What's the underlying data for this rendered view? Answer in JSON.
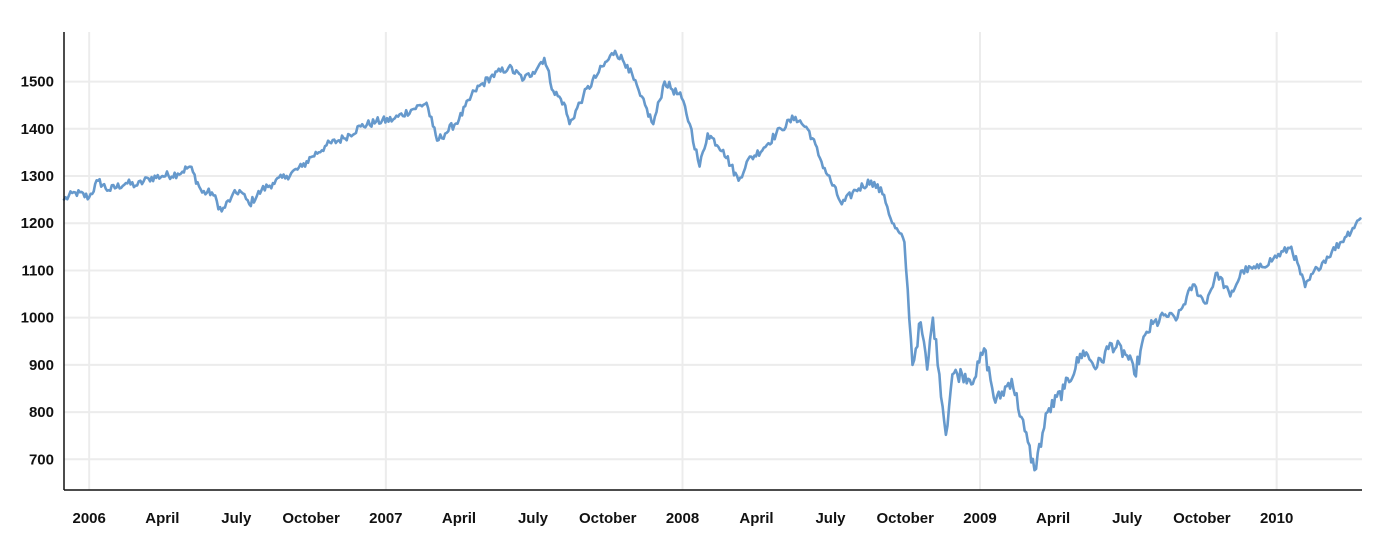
{
  "chart_data": {
    "type": "line",
    "title": "",
    "xlabel": "",
    "ylabel": "",
    "x_range": [
      "2005-12-01",
      "2010-04-16"
    ],
    "ylim": [
      635,
      1605
    ],
    "grid": {
      "horizontal": true,
      "vertical": true
    },
    "legend": "none",
    "colors": {
      "line": "#6699cc",
      "grid": "#ececec",
      "axis": "#111111",
      "text": "#111111"
    },
    "y_ticks": [
      700,
      800,
      900,
      1000,
      1100,
      1200,
      1300,
      1400,
      1500
    ],
    "x_ticks": [
      {
        "date": "2006-01-01",
        "label": "2006"
      },
      {
        "date": "2006-04-01",
        "label": "April"
      },
      {
        "date": "2006-07-01",
        "label": "July"
      },
      {
        "date": "2006-10-01",
        "label": "October"
      },
      {
        "date": "2007-01-01",
        "label": "2007"
      },
      {
        "date": "2007-04-01",
        "label": "April"
      },
      {
        "date": "2007-07-01",
        "label": "July"
      },
      {
        "date": "2007-10-01",
        "label": "October"
      },
      {
        "date": "2008-01-01",
        "label": "2008"
      },
      {
        "date": "2008-04-01",
        "label": "April"
      },
      {
        "date": "2008-07-01",
        "label": "July"
      },
      {
        "date": "2008-10-01",
        "label": "October"
      },
      {
        "date": "2009-01-01",
        "label": "2009"
      },
      {
        "date": "2009-04-01",
        "label": "April"
      },
      {
        "date": "2009-07-01",
        "label": "July"
      },
      {
        "date": "2009-10-01",
        "label": "October"
      },
      {
        "date": "2010-01-01",
        "label": "2010"
      }
    ],
    "series": [
      {
        "points": [
          [
            "2005-12-01",
            1250
          ],
          [
            "2005-12-15",
            1265
          ],
          [
            "2006-01-01",
            1255
          ],
          [
            "2006-01-12",
            1290
          ],
          [
            "2006-01-25",
            1270
          ],
          [
            "2006-02-15",
            1285
          ],
          [
            "2006-03-01",
            1280
          ],
          [
            "2006-03-15",
            1295
          ],
          [
            "2006-04-01",
            1300
          ],
          [
            "2006-04-20",
            1305
          ],
          [
            "2006-05-05",
            1320
          ],
          [
            "2006-05-20",
            1265
          ],
          [
            "2006-06-01",
            1265
          ],
          [
            "2006-06-13",
            1225
          ],
          [
            "2006-06-25",
            1255
          ],
          [
            "2006-07-05",
            1270
          ],
          [
            "2006-07-17",
            1240
          ],
          [
            "2006-08-01",
            1270
          ],
          [
            "2006-08-15",
            1285
          ],
          [
            "2006-09-01",
            1300
          ],
          [
            "2006-09-20",
            1320
          ],
          [
            "2006-10-01",
            1340
          ],
          [
            "2006-10-20",
            1365
          ],
          [
            "2006-11-10",
            1380
          ],
          [
            "2006-12-01",
            1405
          ],
          [
            "2006-12-20",
            1415
          ],
          [
            "2007-01-10",
            1420
          ],
          [
            "2007-02-01",
            1440
          ],
          [
            "2007-02-20",
            1455
          ],
          [
            "2007-02-28",
            1405
          ],
          [
            "2007-03-05",
            1375
          ],
          [
            "2007-03-15",
            1390
          ],
          [
            "2007-04-01",
            1420
          ],
          [
            "2007-04-20",
            1480
          ],
          [
            "2007-05-10",
            1510
          ],
          [
            "2007-06-01",
            1530
          ],
          [
            "2007-06-20",
            1505
          ],
          [
            "2007-07-01",
            1520
          ],
          [
            "2007-07-15",
            1550
          ],
          [
            "2007-07-26",
            1480
          ],
          [
            "2007-08-08",
            1455
          ],
          [
            "2007-08-15",
            1410
          ],
          [
            "2007-09-01",
            1470
          ],
          [
            "2007-09-20",
            1520
          ],
          [
            "2007-10-10",
            1565
          ],
          [
            "2007-10-25",
            1535
          ],
          [
            "2007-11-10",
            1470
          ],
          [
            "2007-11-26",
            1410
          ],
          [
            "2007-12-10",
            1500
          ],
          [
            "2007-12-31",
            1465
          ],
          [
            "2008-01-10",
            1410
          ],
          [
            "2008-01-22",
            1320
          ],
          [
            "2008-02-01",
            1390
          ],
          [
            "2008-02-20",
            1355
          ],
          [
            "2008-03-10",
            1290
          ],
          [
            "2008-03-20",
            1330
          ],
          [
            "2008-04-10",
            1360
          ],
          [
            "2008-05-01",
            1400
          ],
          [
            "2008-05-19",
            1425
          ],
          [
            "2008-06-05",
            1395
          ],
          [
            "2008-06-20",
            1330
          ],
          [
            "2008-07-15",
            1240
          ],
          [
            "2008-08-01",
            1270
          ],
          [
            "2008-08-20",
            1290
          ],
          [
            "2008-09-05",
            1260
          ],
          [
            "2008-09-15",
            1200
          ],
          [
            "2008-09-30",
            1160
          ],
          [
            "2008-10-10",
            900
          ],
          [
            "2008-10-20",
            990
          ],
          [
            "2008-10-28",
            890
          ],
          [
            "2008-11-04",
            1000
          ],
          [
            "2008-11-12",
            880
          ],
          [
            "2008-11-20",
            752
          ],
          [
            "2008-11-28",
            880
          ],
          [
            "2008-12-10",
            880
          ],
          [
            "2008-12-25",
            870
          ],
          [
            "2009-01-06",
            935
          ],
          [
            "2009-01-20",
            820
          ],
          [
            "2009-02-09",
            870
          ],
          [
            "2009-02-25",
            760
          ],
          [
            "2009-03-09",
            677
          ],
          [
            "2009-03-25",
            800
          ],
          [
            "2009-04-15",
            850
          ],
          [
            "2009-05-08",
            930
          ],
          [
            "2009-05-25",
            895
          ],
          [
            "2009-06-12",
            945
          ],
          [
            "2009-07-01",
            920
          ],
          [
            "2009-07-10",
            880
          ],
          [
            "2009-07-25",
            970
          ],
          [
            "2009-08-15",
            1005
          ],
          [
            "2009-09-01",
            1000
          ],
          [
            "2009-09-20",
            1070
          ],
          [
            "2009-10-05",
            1030
          ],
          [
            "2009-10-20",
            1095
          ],
          [
            "2009-11-05",
            1045
          ],
          [
            "2009-11-20",
            1100
          ],
          [
            "2009-12-10",
            1105
          ],
          [
            "2009-12-28",
            1125
          ],
          [
            "2010-01-19",
            1150
          ],
          [
            "2010-02-05",
            1065
          ],
          [
            "2010-02-20",
            1105
          ],
          [
            "2010-03-10",
            1140
          ],
          [
            "2010-03-26",
            1170
          ],
          [
            "2010-04-14",
            1210
          ]
        ]
      }
    ]
  }
}
